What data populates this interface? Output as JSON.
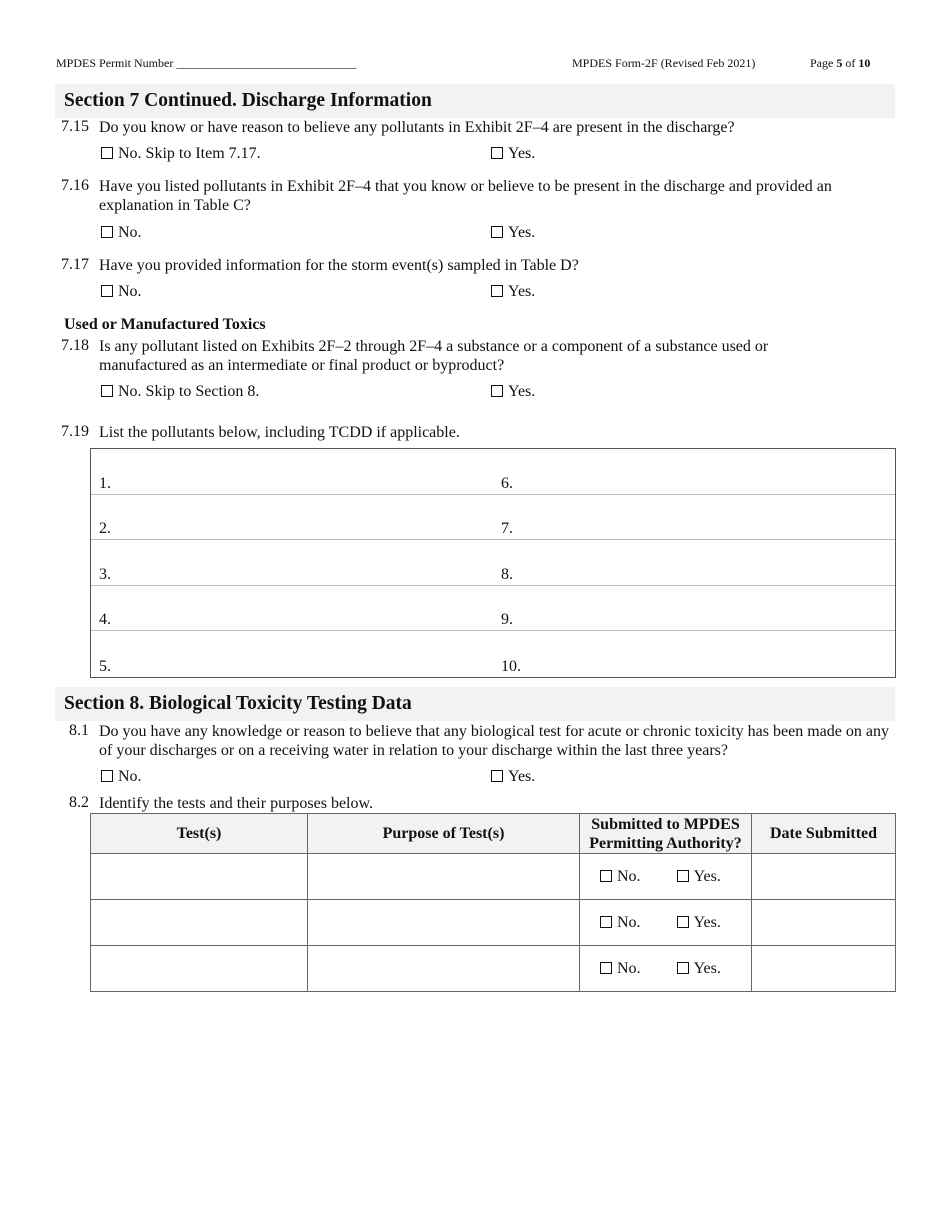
{
  "header": {
    "permit_label": "MPDES Permit Number",
    "permit_blank": "______________________________",
    "form_label": "MPDES Form-2F (Revised Feb 2021)",
    "page_prefix": "Page ",
    "page_num": "5",
    "page_of": " of ",
    "page_total": "10"
  },
  "section7": {
    "title": "Section 7 Continued. Discharge Information",
    "q715": {
      "num": "7.15",
      "text": "Do you know or have reason to believe any pollutants in Exhibit 2F–4 are present in the discharge?",
      "no": "No. Skip to Item 7.17.",
      "yes": "Yes."
    },
    "q716": {
      "num": "7.16",
      "text": "Have you listed pollutants in Exhibit 2F–4 that you know or believe to be present in the discharge and provided an explanation in Table C?",
      "no": "No.",
      "yes": "Yes."
    },
    "q717": {
      "num": "7.17",
      "text": "Have you provided information for the storm event(s) sampled in Table D?",
      "no": "No.",
      "yes": "Yes."
    },
    "subheading": "Used or Manufactured Toxics",
    "q718": {
      "num": "7.18",
      "text": "Is any pollutant listed on Exhibits 2F–2 through 2F–4 a substance or a component of a substance used or manufactured as an intermediate or final product or byproduct?",
      "no": "No. Skip to Section 8.",
      "yes": "Yes."
    },
    "q719": {
      "num": "7.19",
      "text": "List the pollutants below, including TCDD if applicable."
    },
    "pollutant_list": [
      [
        "1.",
        "6."
      ],
      [
        "2.",
        "7."
      ],
      [
        "3.",
        "8."
      ],
      [
        "4.",
        "9."
      ],
      [
        "5.",
        "10."
      ]
    ]
  },
  "section8": {
    "title": "Section 8. Biological Toxicity Testing Data",
    "q81": {
      "num": "8.1",
      "text": "Do you have any knowledge or reason to believe that any biological test for acute or chronic toxicity has been made on any of your discharges or on a receiving water in relation to your discharge within the last three years?",
      "no": "No.",
      "yes": "Yes."
    },
    "q82": {
      "num": "8.2",
      "text": "Identify the tests and their purposes below."
    },
    "table": {
      "headers": [
        "Test(s)",
        "Purpose of Test(s)",
        "Submitted to MPDES Permitting Authority?",
        "Date Submitted"
      ],
      "no": "No.",
      "yes": "Yes."
    }
  }
}
